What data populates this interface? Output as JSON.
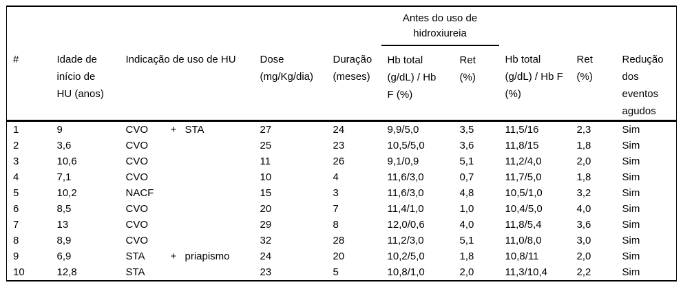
{
  "table": {
    "group_header_antes": "Antes do uso de\nhidroxiureia",
    "columns": {
      "num": "#",
      "idade": "Idade de\ninício de\nHU (anos)",
      "indicacao": "Indicação de uso de HU",
      "dose": "Dose\n(mg/Kg/dia)",
      "duracao": "Duração\n(meses)",
      "hb_antes": "Hb total\n(g/dL) / Hb\nF (%)",
      "ret_antes": "Ret\n(%)",
      "hb_depois": "Hb total\n(g/dL) / Hb F\n(%)",
      "ret_depois": "Ret\n(%)",
      "reducao": "Redução\ndos\neventos\nagudos"
    },
    "rows": [
      {
        "num": "1",
        "idade": "9",
        "ind_a": "CVO",
        "ind_plus": "+",
        "ind_b": "STA",
        "dose": "27",
        "duracao": "24",
        "hb_antes": "9,9/5,0",
        "ret_antes": "3,5",
        "hb_depois": "11,5/16",
        "ret_depois": "2,3",
        "reducao": "Sim"
      },
      {
        "num": "2",
        "idade": "3,6",
        "ind_a": "CVO",
        "ind_plus": "",
        "ind_b": "",
        "dose": "25",
        "duracao": "23",
        "hb_antes": "10,5/5,0",
        "ret_antes": "3,6",
        "hb_depois": "11,8/15",
        "ret_depois": "1,8",
        "reducao": "Sim"
      },
      {
        "num": "3",
        "idade": "10,6",
        "ind_a": "CVO",
        "ind_plus": "",
        "ind_b": "",
        "dose": "11",
        "duracao": "26",
        "hb_antes": "9,1/0,9",
        "ret_antes": "5,1",
        "hb_depois": "11,2/4,0",
        "ret_depois": "2,0",
        "reducao": "Sim"
      },
      {
        "num": "4",
        "idade": "7,1",
        "ind_a": "CVO",
        "ind_plus": "",
        "ind_b": "",
        "dose": "10",
        "duracao": "4",
        "hb_antes": "11,6/3,0",
        "ret_antes": "0,7",
        "hb_depois": "11,7/5,0",
        "ret_depois": "1,8",
        "reducao": "Sim"
      },
      {
        "num": "5",
        "idade": "10,2",
        "ind_a": "NACF",
        "ind_plus": "",
        "ind_b": "",
        "dose": "15",
        "duracao": "3",
        "hb_antes": "11,6/3,0",
        "ret_antes": "4,8",
        "hb_depois": "10,5/1,0",
        "ret_depois": "3,2",
        "reducao": "Sim"
      },
      {
        "num": "6",
        "idade": "8,5",
        "ind_a": "CVO",
        "ind_plus": "",
        "ind_b": "",
        "dose": "20",
        "duracao": "7",
        "hb_antes": "11,4/1,0",
        "ret_antes": "1,0",
        "hb_depois": "10,4/5,0",
        "ret_depois": "4,0",
        "reducao": "Sim"
      },
      {
        "num": "7",
        "idade": "13",
        "ind_a": "CVO",
        "ind_plus": "",
        "ind_b": "",
        "dose": "29",
        "duracao": "8",
        "hb_antes": "12,0/0,6",
        "ret_antes": "4,0",
        "hb_depois": "11,8/5,4",
        "ret_depois": "3,6",
        "reducao": "Sim"
      },
      {
        "num": "8",
        "idade": "8,9",
        "ind_a": "CVO",
        "ind_plus": "",
        "ind_b": "",
        "dose": "32",
        "duracao": "28",
        "hb_antes": "11,2/3,0",
        "ret_antes": "5,1",
        "hb_depois": "11,0/8,0",
        "ret_depois": "3,0",
        "reducao": "Sim"
      },
      {
        "num": "9",
        "idade": "6,9",
        "ind_a": "STA",
        "ind_plus": "+",
        "ind_b": "priapismo",
        "dose": "24",
        "duracao": "20",
        "hb_antes": "10,2/5,0",
        "ret_antes": "1,8",
        "hb_depois": "10,8/11",
        "ret_depois": "2,0",
        "reducao": "Sim"
      },
      {
        "num": "10",
        "idade": "12,8",
        "ind_a": "STA",
        "ind_plus": "",
        "ind_b": "",
        "dose": "23",
        "duracao": "5",
        "hb_antes": "10,8/1,0",
        "ret_antes": "2,0",
        "hb_depois": "11,3/10,4",
        "ret_depois": "2,2",
        "reducao": "Sim"
      }
    ],
    "colors": {
      "text": "#000000",
      "background": "#ffffff",
      "rule": "#000000"
    }
  }
}
